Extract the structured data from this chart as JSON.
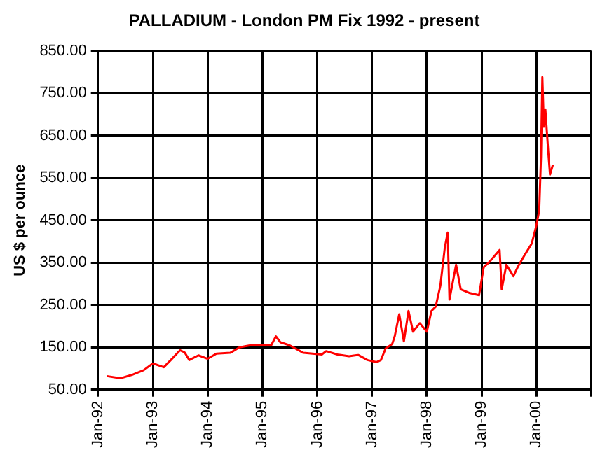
{
  "chart_data": {
    "type": "line",
    "title": "PALLADIUM - London PM Fix 1992 - present",
    "ylabel": "US $ per ounce",
    "x": [
      "1992-03-01",
      "1992-06-01",
      "1992-08-15",
      "1992-11-01",
      "1993-01-01",
      "1993-03-15",
      "1993-05-01",
      "1993-07-01",
      "1993-08-01",
      "1993-09-01",
      "1993-11-01",
      "1994-01-01",
      "1994-03-01",
      "1994-06-01",
      "1994-08-01",
      "1994-10-15",
      "1995-03-01",
      "1995-04-01",
      "1995-05-01",
      "1995-07-01",
      "1995-10-01",
      "1996-02-01",
      "1996-03-01",
      "1996-05-15",
      "1996-08-01",
      "1996-10-01",
      "1996-12-01",
      "1997-02-01",
      "1997-03-01",
      "1997-04-01",
      "1997-05-15",
      "1997-06-01",
      "1997-07-01",
      "1997-08-01",
      "1997-09-01",
      "1997-10-01",
      "1997-11-15",
      "1998-01-01",
      "1998-02-01",
      "1998-03-01",
      "1998-04-01",
      "1998-05-01",
      "1998-05-20",
      "1998-06-01",
      "1998-07-15",
      "1998-08-15",
      "1998-10-15",
      "1998-12-15",
      "1999-01-15",
      "1999-02-20",
      "1999-05-01",
      "1999-05-15",
      "1999-06-15",
      "1999-08-01",
      "1999-09-01",
      "1999-10-15",
      "1999-12-01",
      "2000-01-01",
      "2000-01-20",
      "2000-02-01",
      "2000-02-10",
      "2000-02-20",
      "2000-03-01",
      "2000-03-20",
      "2000-04-01",
      "2000-04-20"
    ],
    "series": [
      {
        "color": "#ff0000",
        "values": [
          82,
          77,
          85,
          96,
          112,
          103,
          120,
          143,
          138,
          120,
          131,
          123,
          135,
          137,
          150,
          155,
          155,
          176,
          162,
          155,
          137,
          133,
          141,
          133,
          129,
          132,
          120,
          115,
          120,
          147,
          158,
          176,
          228,
          164,
          236,
          187,
          207,
          187,
          236,
          246,
          295,
          386,
          421,
          263,
          345,
          287,
          278,
          273,
          339,
          351,
          380,
          287,
          345,
          318,
          341,
          368,
          395,
          438,
          473,
          601,
          788,
          671,
          712,
          613,
          558,
          581
        ]
      }
    ],
    "xlim": [
      "1992-01-01",
      "2001-01-01"
    ],
    "xticks": [
      {
        "value": "1992-01-01",
        "label": "Jan-92"
      },
      {
        "value": "1993-01-01",
        "label": "Jan-93"
      },
      {
        "value": "1994-01-01",
        "label": "Jan-94"
      },
      {
        "value": "1995-01-01",
        "label": "Jan-95"
      },
      {
        "value": "1996-01-01",
        "label": "Jan-96"
      },
      {
        "value": "1997-01-01",
        "label": "Jan-97"
      },
      {
        "value": "1998-01-01",
        "label": "Jan-98"
      },
      {
        "value": "1999-01-01",
        "label": "Jan-99"
      },
      {
        "value": "2000-01-01",
        "label": "Jan-00"
      },
      {
        "value": "2001-01-01",
        "label": null
      }
    ],
    "ylim": [
      50,
      850
    ],
    "yticks": [
      {
        "value": 50,
        "label": "50.00"
      },
      {
        "value": 150,
        "label": "150.00"
      },
      {
        "value": 250,
        "label": "250.00"
      },
      {
        "value": 350,
        "label": "350.00"
      },
      {
        "value": 450,
        "label": "450.00"
      },
      {
        "value": 550,
        "label": "550.00"
      },
      {
        "value": 650,
        "label": "650.00"
      },
      {
        "value": 750,
        "label": "750.00"
      },
      {
        "value": 850,
        "label": "850.00"
      }
    ],
    "grid": true,
    "legend": false,
    "marker": "none",
    "line_style": "solid"
  }
}
